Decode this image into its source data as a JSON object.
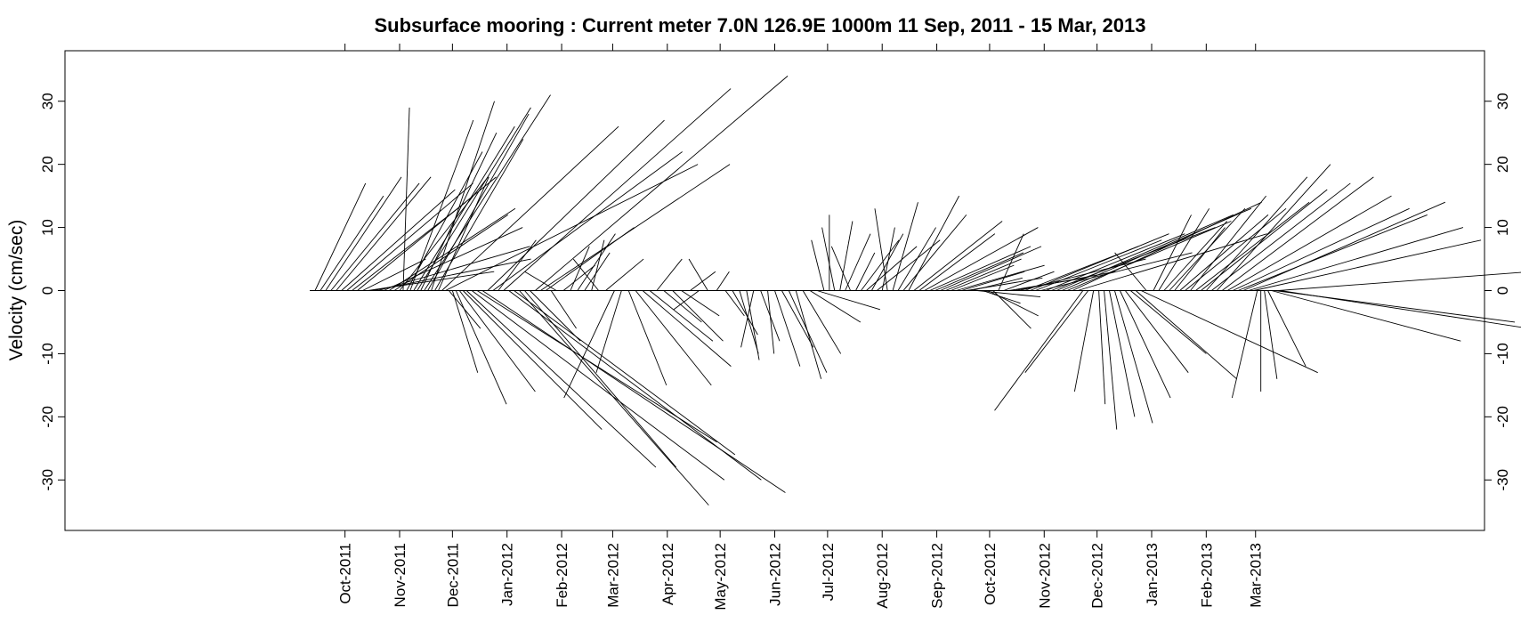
{
  "chart_data": {
    "type": "stick",
    "title": "Subsurface mooring : Current meter  7.0N 126.9E    1000m  11 Sep, 2011 - 15 Mar, 2013",
    "ylabel": "Velocity (cm/sec)",
    "xlabel": "",
    "ylim": [
      -38,
      38
    ],
    "yticks": [
      -30,
      -20,
      -10,
      0,
      10,
      20,
      30
    ],
    "ytick_labels": [
      "-30",
      "-20",
      "-10",
      "0",
      "10",
      "20",
      "30"
    ],
    "xticks": [
      {
        "label": "Oct-2011",
        "date": "2011-10-01"
      },
      {
        "label": "Nov-2011",
        "date": "2011-11-01"
      },
      {
        "label": "Dec-2011",
        "date": "2011-12-01"
      },
      {
        "label": "Jan-2012",
        "date": "2012-01-01"
      },
      {
        "label": "Feb-2012",
        "date": "2012-02-01"
      },
      {
        "label": "Mar-2012",
        "date": "2012-03-01"
      },
      {
        "label": "Apr-2012",
        "date": "2012-04-01"
      },
      {
        "label": "May-2012",
        "date": "2012-05-01"
      },
      {
        "label": "Jun-2012",
        "date": "2012-06-01"
      },
      {
        "label": "Jul-2012",
        "date": "2012-07-01"
      },
      {
        "label": "Aug-2012",
        "date": "2012-08-01"
      },
      {
        "label": "Sep-2012",
        "date": "2012-09-01"
      },
      {
        "label": "Oct-2012",
        "date": "2012-10-01"
      },
      {
        "label": "Nov-2012",
        "date": "2012-11-01"
      },
      {
        "label": "Dec-2012",
        "date": "2012-12-01"
      },
      {
        "label": "Jan-2013",
        "date": "2013-01-01"
      },
      {
        "label": "Feb-2013",
        "date": "2013-02-01"
      },
      {
        "label": "Mar-2013",
        "date": "2013-03-01"
      }
    ],
    "xlim": [
      "2011-04-25",
      "2013-07-09"
    ],
    "grid": false,
    "legend": "none",
    "sticks": [
      {
        "date": "2011-09-11",
        "u": 0,
        "v": 0
      },
      {
        "date": "2011-09-14",
        "u": 8,
        "v": 17
      },
      {
        "date": "2011-09-17",
        "u": 10,
        "v": 15
      },
      {
        "date": "2011-09-20",
        "u": 12,
        "v": 18
      },
      {
        "date": "2011-09-23",
        "u": 14,
        "v": 17
      },
      {
        "date": "2011-09-26",
        "u": 15,
        "v": 18
      },
      {
        "date": "2011-09-29",
        "u": 18,
        "v": 16
      },
      {
        "date": "2011-10-02",
        "u": 20,
        "v": 17
      },
      {
        "date": "2011-10-05",
        "u": 18,
        "v": 14
      },
      {
        "date": "2011-10-08",
        "u": 22,
        "v": 18
      },
      {
        "date": "2011-10-11",
        "u": 10,
        "v": 5
      },
      {
        "date": "2011-10-14",
        "u": 20,
        "v": 3
      },
      {
        "date": "2011-10-17",
        "u": 25,
        "v": 5
      },
      {
        "date": "2011-10-20",
        "u": 24,
        "v": 7
      },
      {
        "date": "2011-10-23",
        "u": 22,
        "v": 10
      },
      {
        "date": "2011-10-26",
        "u": 20,
        "v": 13
      },
      {
        "date": "2011-10-29",
        "u": 18,
        "v": 12
      },
      {
        "date": "2011-11-01",
        "u": 14,
        "v": 18
      },
      {
        "date": "2011-11-03",
        "u": 1,
        "v": 29
      },
      {
        "date": "2011-11-05",
        "u": 12,
        "v": 22
      },
      {
        "date": "2011-11-07",
        "u": 10,
        "v": 27
      },
      {
        "date": "2011-11-09",
        "u": 16,
        "v": 26
      },
      {
        "date": "2011-11-11",
        "u": 18,
        "v": 29
      },
      {
        "date": "2011-11-13",
        "u": 12,
        "v": 25
      },
      {
        "date": "2011-11-15",
        "u": 20,
        "v": 31
      },
      {
        "date": "2011-11-17",
        "u": 16,
        "v": 28
      },
      {
        "date": "2011-11-19",
        "u": 10,
        "v": 30
      },
      {
        "date": "2011-11-21",
        "u": 14,
        "v": 24
      },
      {
        "date": "2011-11-23",
        "u": 8,
        "v": 18
      },
      {
        "date": "2011-11-25",
        "u": 28,
        "v": 26
      },
      {
        "date": "2011-11-27",
        "u": 40,
        "v": 20
      },
      {
        "date": "2011-11-29",
        "u": 5,
        "v": -6
      },
      {
        "date": "2011-12-01",
        "u": 4,
        "v": -13
      },
      {
        "date": "2011-12-03",
        "u": 8,
        "v": -18
      },
      {
        "date": "2011-12-05",
        "u": 12,
        "v": -16
      },
      {
        "date": "2011-12-07",
        "u": 22,
        "v": -22
      },
      {
        "date": "2011-12-09",
        "u": 30,
        "v": -28
      },
      {
        "date": "2011-12-12",
        "u": 40,
        "v": -30
      },
      {
        "date": "2011-12-15",
        "u": 38,
        "v": -24
      },
      {
        "date": "2011-12-18",
        "u": 48,
        "v": -32
      },
      {
        "date": "2011-12-21",
        "u": 28,
        "v": 27
      },
      {
        "date": "2011-12-24",
        "u": 30,
        "v": 22
      },
      {
        "date": "2011-12-27",
        "u": 6,
        "v": 8
      },
      {
        "date": "2011-12-30",
        "u": 36,
        "v": 32
      },
      {
        "date": "2012-01-02",
        "u": 40,
        "v": -30
      },
      {
        "date": "2012-01-05",
        "u": 35,
        "v": -26
      },
      {
        "date": "2012-01-08",
        "u": 30,
        "v": -34
      },
      {
        "date": "2012-01-11",
        "u": 24,
        "v": -28
      },
      {
        "date": "2012-01-14",
        "u": 8,
        "v": -8
      },
      {
        "date": "2012-01-17",
        "u": 40,
        "v": 34
      },
      {
        "date": "2012-01-20",
        "u": 30,
        "v": 20
      },
      {
        "date": "2012-01-23",
        "u": 14,
        "v": 10
      },
      {
        "date": "2012-01-26",
        "u": 4,
        "v": -6
      },
      {
        "date": "2012-01-29",
        "u": -5,
        "v": 3
      },
      {
        "date": "2012-02-02",
        "u": 5,
        "v": 4
      },
      {
        "date": "2012-02-06",
        "u": 3,
        "v": 7
      },
      {
        "date": "2012-02-10",
        "u": 6,
        "v": 9
      },
      {
        "date": "2012-02-14",
        "u": 4,
        "v": 6
      },
      {
        "date": "2012-02-18",
        "u": 2,
        "v": 8
      },
      {
        "date": "2012-02-22",
        "u": -4,
        "v": 5
      },
      {
        "date": "2012-02-26",
        "u": 6,
        "v": 5
      },
      {
        "date": "2012-03-02",
        "u": -8,
        "v": -17
      },
      {
        "date": "2012-03-06",
        "u": -4,
        "v": -13
      },
      {
        "date": "2012-03-10",
        "u": 6,
        "v": -15
      },
      {
        "date": "2012-03-14",
        "u": 12,
        "v": -15
      },
      {
        "date": "2012-03-18",
        "u": 14,
        "v": -12
      },
      {
        "date": "2012-03-22",
        "u": 10,
        "v": -8
      },
      {
        "date": "2012-03-26",
        "u": 4,
        "v": 5
      },
      {
        "date": "2012-03-30",
        "u": 6,
        "v": -5
      },
      {
        "date": "2012-04-04",
        "u": 8,
        "v": -8
      },
      {
        "date": "2012-04-09",
        "u": 6,
        "v": -4
      },
      {
        "date": "2012-04-14",
        "u": 4,
        "v": 3
      },
      {
        "date": "2012-04-19",
        "u": -4,
        "v": -3
      },
      {
        "date": "2012-04-24",
        "u": -3,
        "v": 5
      },
      {
        "date": "2012-04-29",
        "u": 2,
        "v": 3
      },
      {
        "date": "2012-05-04",
        "u": 3,
        "v": -4
      },
      {
        "date": "2012-05-08",
        "u": 4,
        "v": -7
      },
      {
        "date": "2012-05-12",
        "u": 3,
        "v": -10
      },
      {
        "date": "2012-05-16",
        "u": 2,
        "v": -11
      },
      {
        "date": "2012-05-20",
        "u": -2,
        "v": -9
      },
      {
        "date": "2012-05-24",
        "u": 3,
        "v": -8
      },
      {
        "date": "2012-05-28",
        "u": 1,
        "v": -10
      },
      {
        "date": "2012-06-01",
        "u": 4,
        "v": -12
      },
      {
        "date": "2012-06-05",
        "u": 5,
        "v": -9
      },
      {
        "date": "2012-06-09",
        "u": 6,
        "v": -13
      },
      {
        "date": "2012-06-13",
        "u": 4,
        "v": -14
      },
      {
        "date": "2012-06-17",
        "u": 6,
        "v": -10
      },
      {
        "date": "2012-06-21",
        "u": 8,
        "v": -5
      },
      {
        "date": "2012-06-25",
        "u": 10,
        "v": -3
      },
      {
        "date": "2012-06-29",
        "u": -2,
        "v": 8
      },
      {
        "date": "2012-07-02",
        "u": 0,
        "v": 12
      },
      {
        "date": "2012-07-05",
        "u": -2,
        "v": 10
      },
      {
        "date": "2012-07-08",
        "u": 2,
        "v": 11
      },
      {
        "date": "2012-07-11",
        "u": 4,
        "v": 9
      },
      {
        "date": "2012-07-14",
        "u": -3,
        "v": 7
      },
      {
        "date": "2012-07-17",
        "u": 3,
        "v": 6
      },
      {
        "date": "2012-07-20",
        "u": 6,
        "v": 8
      },
      {
        "date": "2012-07-23",
        "u": 8,
        "v": 7
      },
      {
        "date": "2012-07-26",
        "u": 5,
        "v": 9
      },
      {
        "date": "2012-07-29",
        "u": 10,
        "v": 8
      },
      {
        "date": "2012-08-01",
        "u": 2,
        "v": 10
      },
      {
        "date": "2012-08-04",
        "u": -2,
        "v": 13
      },
      {
        "date": "2012-08-07",
        "u": 4,
        "v": 14
      },
      {
        "date": "2012-08-10",
        "u": 6,
        "v": 10
      },
      {
        "date": "2012-08-13",
        "u": 10,
        "v": 12
      },
      {
        "date": "2012-08-16",
        "u": 8,
        "v": 15
      },
      {
        "date": "2012-08-19",
        "u": 14,
        "v": 11
      },
      {
        "date": "2012-08-22",
        "u": 12,
        "v": 9
      },
      {
        "date": "2012-08-25",
        "u": 18,
        "v": 10
      },
      {
        "date": "2012-08-28",
        "u": 16,
        "v": 7
      },
      {
        "date": "2012-08-31",
        "u": 14,
        "v": 6
      },
      {
        "date": "2012-09-03",
        "u": 16,
        "v": 7
      },
      {
        "date": "2012-09-06",
        "u": 12,
        "v": 5
      },
      {
        "date": "2012-09-09",
        "u": 10,
        "v": 4
      },
      {
        "date": "2012-09-12",
        "u": 14,
        "v": 4
      },
      {
        "date": "2012-09-15",
        "u": 10,
        "v": 3
      },
      {
        "date": "2012-09-18",
        "u": 12,
        "v": 2
      },
      {
        "date": "2012-09-21",
        "u": 8,
        "v": 2
      },
      {
        "date": "2012-09-24",
        "u": 10,
        "v": -1
      },
      {
        "date": "2012-09-27",
        "u": 6,
        "v": -2
      },
      {
        "date": "2012-09-30",
        "u": 8,
        "v": -4
      },
      {
        "date": "2012-10-03",
        "u": 6,
        "v": -6
      },
      {
        "date": "2012-10-06",
        "u": 4,
        "v": 9
      },
      {
        "date": "2012-10-09",
        "u": 8,
        "v": 3
      },
      {
        "date": "2012-10-12",
        "u": 12,
        "v": 2
      },
      {
        "date": "2012-10-15",
        "u": 16,
        "v": 3
      },
      {
        "date": "2012-10-18",
        "u": 20,
        "v": 5
      },
      {
        "date": "2012-10-21",
        "u": 18,
        "v": 7
      },
      {
        "date": "2012-10-24",
        "u": 22,
        "v": 9
      },
      {
        "date": "2012-10-27",
        "u": 20,
        "v": 8
      },
      {
        "date": "2012-10-30",
        "u": 24,
        "v": 6
      },
      {
        "date": "2012-11-02",
        "u": 22,
        "v": 9
      },
      {
        "date": "2012-11-05",
        "u": 26,
        "v": 10
      },
      {
        "date": "2012-11-08",
        "u": 28,
        "v": 12
      },
      {
        "date": "2012-11-11",
        "u": 30,
        "v": 13
      },
      {
        "date": "2012-11-14",
        "u": 26,
        "v": 11
      },
      {
        "date": "2012-11-17",
        "u": 30,
        "v": 14
      },
      {
        "date": "2012-11-20",
        "u": 30,
        "v": 9
      },
      {
        "date": "2012-11-23",
        "u": -14,
        "v": -19
      },
      {
        "date": "2012-11-26",
        "u": -10,
        "v": -13
      },
      {
        "date": "2012-11-29",
        "u": -3,
        "v": -16
      },
      {
        "date": "2012-12-02",
        "u": 1,
        "v": -18
      },
      {
        "date": "2012-12-05",
        "u": 2,
        "v": -22
      },
      {
        "date": "2012-12-08",
        "u": 4,
        "v": -20
      },
      {
        "date": "2012-12-11",
        "u": 6,
        "v": -21
      },
      {
        "date": "2012-12-14",
        "u": 8,
        "v": -17
      },
      {
        "date": "2012-12-17",
        "u": 10,
        "v": -13
      },
      {
        "date": "2012-12-20",
        "u": 12,
        "v": -10
      },
      {
        "date": "2012-12-23",
        "u": 16,
        "v": -14
      },
      {
        "date": "2012-12-26",
        "u": 28,
        "v": -13
      },
      {
        "date": "2012-12-29",
        "u": -5,
        "v": 6
      },
      {
        "date": "2013-01-02",
        "u": 6,
        "v": 12
      },
      {
        "date": "2013-01-05",
        "u": 8,
        "v": 13
      },
      {
        "date": "2013-01-08",
        "u": 10,
        "v": 11
      },
      {
        "date": "2013-01-11",
        "u": 12,
        "v": 13
      },
      {
        "date": "2013-01-14",
        "u": 8,
        "v": 10
      },
      {
        "date": "2013-01-17",
        "u": 14,
        "v": 12
      },
      {
        "date": "2013-01-20",
        "u": 16,
        "v": 13
      },
      {
        "date": "2013-01-23",
        "u": 12,
        "v": 15
      },
      {
        "date": "2013-01-26",
        "u": 18,
        "v": 14
      },
      {
        "date": "2013-01-29",
        "u": 20,
        "v": 16
      },
      {
        "date": "2013-02-01",
        "u": 16,
        "v": 18
      },
      {
        "date": "2013-02-04",
        "u": 22,
        "v": 17
      },
      {
        "date": "2013-02-07",
        "u": 18,
        "v": 20
      },
      {
        "date": "2013-02-10",
        "u": 24,
        "v": 18
      },
      {
        "date": "2013-02-13",
        "u": 26,
        "v": 15
      },
      {
        "date": "2013-02-16",
        "u": 28,
        "v": 13
      },
      {
        "date": "2013-02-19",
        "u": 30,
        "v": 12
      },
      {
        "date": "2013-02-22",
        "u": 32,
        "v": 14
      },
      {
        "date": "2013-02-25",
        "u": 34,
        "v": 10
      },
      {
        "date": "2013-02-28",
        "u": 36,
        "v": 8
      },
      {
        "date": "2013-03-02",
        "u": -4,
        "v": -17
      },
      {
        "date": "2013-03-04",
        "u": 0,
        "v": -16
      },
      {
        "date": "2013-03-06",
        "u": 2,
        "v": -14
      },
      {
        "date": "2013-03-08",
        "u": 6,
        "v": -12
      },
      {
        "date": "2013-03-10",
        "u": 30,
        "v": -8
      },
      {
        "date": "2013-03-12",
        "u": 38,
        "v": -5
      },
      {
        "date": "2013-03-14",
        "u": 40,
        "v": 3
      },
      {
        "date": "2013-03-15",
        "u": 46,
        "v": -7
      }
    ]
  }
}
